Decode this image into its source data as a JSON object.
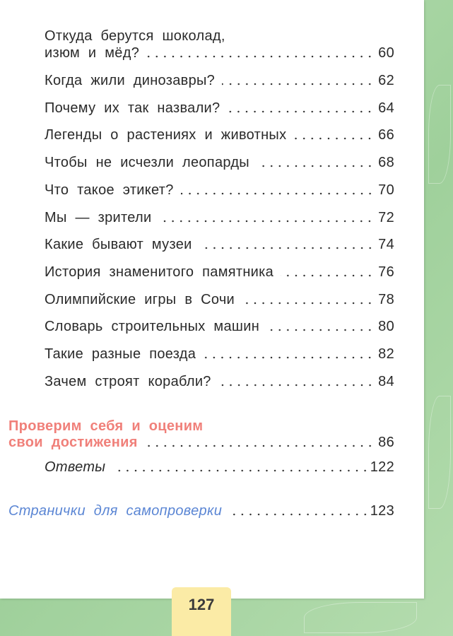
{
  "toc": {
    "first_entry": {
      "line1": "Откуда берутся шоколад,",
      "line2": "изюм и мёд?",
      "page": "60"
    },
    "entries": [
      {
        "title": "Когда жили динозавры?",
        "page": "62"
      },
      {
        "title": "Почему их так назвали?",
        "page": "64"
      },
      {
        "title": "Легенды о растениях и животных",
        "page": "66"
      },
      {
        "title": "Чтобы не исчезли леопарды",
        "page": "68"
      },
      {
        "title": "Что такое этикет?",
        "page": "70"
      },
      {
        "title": "Мы — зрители",
        "page": "72"
      },
      {
        "title": "Какие бывают музеи",
        "page": "74"
      },
      {
        "title": "История знаменитого памятника",
        "page": "76"
      },
      {
        "title": "Олимпийские игры в Сочи",
        "page": "78"
      },
      {
        "title": "Словарь строительных машин",
        "page": "80"
      },
      {
        "title": "Такие разные поезда",
        "page": "82"
      },
      {
        "title": "Зачем строят корабли?",
        "page": "84"
      }
    ],
    "section": {
      "line1": "Проверим себя и оценим",
      "line2": "свои достижения",
      "page": "86"
    },
    "answers": {
      "title": "Ответы",
      "page": "122"
    },
    "self_check": {
      "title": "Странички для самопроверки",
      "page": "123"
    }
  },
  "page_number": "127",
  "colors": {
    "section_heading": "#f0807a",
    "self_check": "#5b86d4",
    "background": "#a9d6a6",
    "page_number_tab": "#fbeba6"
  }
}
